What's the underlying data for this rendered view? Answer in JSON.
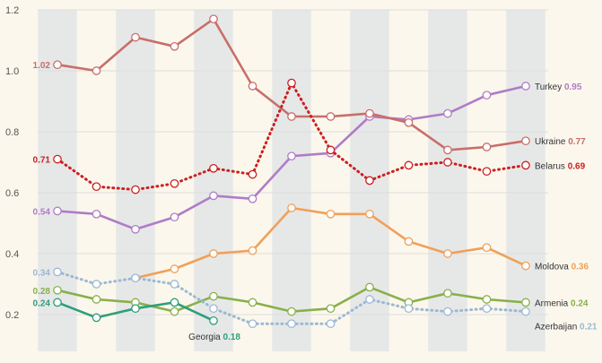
{
  "chart_data": {
    "type": "line",
    "title": "",
    "xlabel": "",
    "ylabel": "",
    "ylim": [
      0.2,
      1.2
    ],
    "yticks": [
      0.2,
      0.4,
      0.6,
      0.8,
      1.0,
      1.2
    ],
    "ytick_labels": [
      "0.2",
      "0.4",
      "0.6",
      "0.8",
      "1.0",
      "1.2"
    ],
    "x_points": 14,
    "grid": "horizontal lines with alternating vertical column bands",
    "colors": {
      "background": "#fbf7ec",
      "band": "#e6e8e8",
      "grid": "#dddddd"
    },
    "series": [
      {
        "name": "Turkey",
        "color": "#b07cc6",
        "style": "solid",
        "start_label": "0.54",
        "end_label": "0.95",
        "values": [
          0.54,
          0.53,
          0.48,
          0.52,
          0.59,
          0.58,
          0.72,
          0.73,
          0.85,
          0.84,
          0.86,
          0.92,
          0.95,
          null
        ]
      },
      {
        "name": "Ukraine",
        "color": "#c96e6a",
        "style": "solid",
        "start_label": "1.02",
        "end_label": "0.77",
        "values": [
          1.02,
          1.0,
          1.11,
          1.08,
          1.17,
          0.95,
          0.85,
          0.85,
          0.86,
          0.83,
          0.74,
          0.75,
          0.77,
          null
        ]
      },
      {
        "name": "Belarus",
        "color": "#cc1f1f",
        "style": "dotted",
        "start_label": "0.71",
        "end_label": "0.69",
        "values": [
          0.71,
          0.62,
          0.61,
          0.63,
          0.68,
          0.66,
          0.96,
          0.74,
          0.64,
          0.69,
          0.7,
          0.67,
          0.69,
          null
        ]
      },
      {
        "name": "Moldova",
        "color": "#f0a05a",
        "style": "solid",
        "start_label": "",
        "end_label": "0.36",
        "values": [
          null,
          null,
          0.32,
          0.35,
          0.4,
          0.41,
          0.55,
          0.53,
          0.53,
          0.44,
          0.4,
          0.42,
          0.36,
          null
        ]
      },
      {
        "name": "Armenia",
        "color": "#88b04b",
        "style": "solid",
        "start_label": "0.28",
        "end_label": "0.24",
        "values": [
          0.28,
          0.25,
          0.24,
          0.21,
          0.26,
          0.24,
          0.21,
          0.22,
          0.29,
          0.24,
          0.27,
          0.25,
          0.24,
          null
        ]
      },
      {
        "name": "Azerbaijan",
        "color": "#9bb8d3",
        "style": "dotted",
        "start_label": "0.34",
        "end_label": "0.21",
        "values": [
          0.34,
          0.3,
          0.32,
          0.3,
          0.22,
          0.17,
          0.17,
          0.17,
          0.25,
          0.22,
          0.21,
          0.22,
          0.21,
          null
        ]
      },
      {
        "name": "Georgia",
        "color": "#2e9e7c",
        "style": "solid",
        "start_label": "0.24",
        "end_label": "0.18",
        "values": [
          0.24,
          0.19,
          0.22,
          0.24,
          0.18,
          null,
          null,
          null,
          null,
          null,
          null,
          null,
          null,
          null
        ]
      }
    ]
  }
}
